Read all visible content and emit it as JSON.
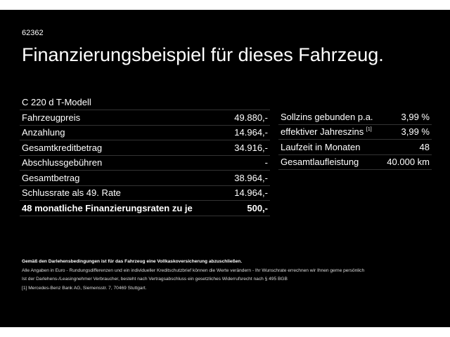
{
  "code": "62362",
  "title": "Finanzierungsbeispiel für dieses Fahrzeug.",
  "model": "C 220 d T-Modell",
  "left_rows": [
    {
      "label": "Fahrzeugpreis",
      "value": "49.880,-"
    },
    {
      "label": "Anzahlung",
      "value": "14.964,-"
    },
    {
      "label": "Gesamtkreditbetrag",
      "value": "34.916,-"
    },
    {
      "label": "Abschlussgebühren",
      "value": "-"
    },
    {
      "label": "Gesamtbetrag",
      "value": "38.964,-"
    },
    {
      "label": "Schlussrate als 49. Rate",
      "value": "14.964,-"
    },
    {
      "label": "48 monatliche Finanzierungsraten zu je",
      "value": "500,-"
    }
  ],
  "right_rows": [
    {
      "label": "Sollzins gebunden p.a.",
      "value": "3,99 %"
    },
    {
      "label": "effektiver Jahreszins",
      "sup": "[1]",
      "value": "3,99 %"
    },
    {
      "label": "Laufzeit in Monaten",
      "value": "48"
    },
    {
      "label": "Gesamtlaufleistung",
      "value": "40.000 km"
    }
  ],
  "footer": {
    "line1": "Gemäß den Darlehensbedingungen ist für das Fahrzeug eine Vollkaskoversicherung abzuschließen.",
    "line2": "Alle Angaben in Euro - Rundungsdifferenzen und ein individueller Kreditschutzbrief können die Werte verändern - Ihr Wunschrate errechnen wir Ihnen gerne persönlich",
    "line3": "Ist der Darlehens-/Leasingnehmer Verbraucher, besteht nach Vertragsabschluss ein gesetzliches Widerrufsrecht nach § 495 BGB",
    "note_mark": "[1]",
    "note": "Mercedes-Benz Bank AG, Siemensstr. 7, 70469 Stuttgart."
  }
}
